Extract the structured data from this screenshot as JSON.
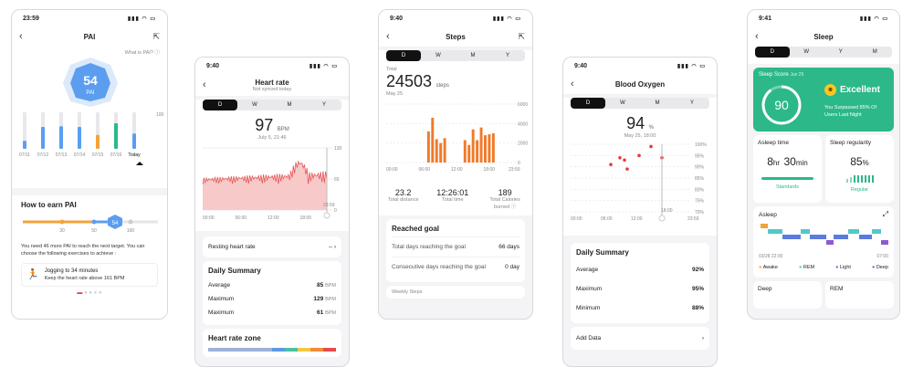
{
  "pai": {
    "time": "23:59",
    "status_icons": "▮▮▮ ◠ ▭",
    "title": "PAI",
    "what_link": "What is PAI? ⓘ",
    "score": "54",
    "score_label": "PAI",
    "chart_axis": [
      "100"
    ],
    "chart_data": {
      "type": "bar",
      "categories": [
        "07/11",
        "07/12",
        "07/13",
        "07/14",
        "07/15",
        "07/16",
        "Today"
      ],
      "values": [
        22,
        60,
        62,
        60,
        38,
        70,
        42
      ],
      "ylim": [
        0,
        100
      ]
    },
    "earn_title": "How to earn PAI",
    "slider_ticks": [
      "30",
      "50",
      "100"
    ],
    "slider_value": "54",
    "message": "You need 46 more PAI to reach the next target. You can choose the following exercises to achieve :",
    "exercise_title": "Jogging to 34 minutes",
    "exercise_desc": "Keep the heart rate above 161 BPM"
  },
  "heart": {
    "time": "9:40",
    "status_icons": "▮▮▮ ◠ ▭",
    "title": "Heart rate",
    "subtitle": "Not synced today",
    "tabs": [
      "D",
      "W",
      "M",
      "Y"
    ],
    "value": "97",
    "unit": "BPM",
    "date": "July 5, 21:46",
    "y_ticks": [
      "130",
      "65",
      "0"
    ],
    "x_ticks": [
      "00:00",
      "06:00",
      "12:00",
      "18:00",
      "23:59"
    ],
    "resting_label": "Resting heart rate",
    "resting_value": "-- ›",
    "summary_title": "Daily Summary",
    "summary": [
      {
        "label": "Average",
        "value": "85",
        "unit": "BPM"
      },
      {
        "label": "Maximum",
        "value": "129",
        "unit": "BPM"
      },
      {
        "label": "Maximum",
        "value": "61",
        "unit": "BPM"
      }
    ],
    "zone_title": "Heart rate zone"
  },
  "steps": {
    "time": "9:40",
    "status_icons": "▮▮▮ ◠ ▭",
    "title": "Steps",
    "tabs": [
      "D",
      "W",
      "M",
      "Y"
    ],
    "total_label": "Total",
    "total": "24503",
    "total_unit": "steps",
    "date": "May 25",
    "y_ticks": [
      "6000",
      "4000",
      "2000",
      "0"
    ],
    "x_ticks": [
      "00:00",
      "06:00",
      "12:00",
      "18:00",
      "23:59"
    ],
    "stats": [
      {
        "value": "23.2",
        "label": "Total distance"
      },
      {
        "value": "12:26:01",
        "label": "Total time"
      },
      {
        "value": "189",
        "label": "Total Calories burned ⓘ"
      }
    ],
    "goal_title": "Reached goal",
    "goal_rows": [
      {
        "label": "Total days reaching the goal",
        "value": "66 days"
      },
      {
        "label": "Consecutive days reaching the goal",
        "value": "0 day"
      }
    ],
    "weekly": "Weekly Steps"
  },
  "oxygen": {
    "time": "9:40",
    "status_icons": "▮▮▮ ◠ ▭",
    "title": "Blood Oxygen",
    "tabs": [
      "D",
      "W",
      "M",
      "Y"
    ],
    "value": "94",
    "unit": "%",
    "date": "May 25, 18:00",
    "y_ticks": [
      "100%",
      "95%",
      "90%",
      "85%",
      "80%",
      "75%",
      "70%"
    ],
    "x_ticks": [
      "00:00",
      "06:00",
      "12:00",
      "18:00",
      "23:59"
    ],
    "summary_title": "Daily Summary",
    "summary": [
      {
        "label": "Average",
        "value": "92%"
      },
      {
        "label": "Maximum",
        "value": "95%"
      },
      {
        "label": "Minimum",
        "value": "88%"
      }
    ],
    "add_data": "Add Data",
    "add_arrow": "›"
  },
  "sleep": {
    "time": "9:41",
    "status_icons": "▮▮▮ ◠ ▭",
    "title": "Sleep",
    "tabs": [
      "D",
      "W",
      "Y",
      "M"
    ],
    "score_title": "Sleep Score",
    "score_date": "Jun 25",
    "score": "90",
    "rating": "Excellent",
    "surpass": "You Surpassed 85% Of Users Last Night",
    "asleep_title": "Asleep time",
    "asleep_h": "8",
    "asleep_hr": "hr",
    "asleep_m": "30",
    "asleep_min": "min",
    "asleep_caption": "Standards",
    "reg_title": "Sleep regularity",
    "reg_value": "85",
    "reg_unit": "%",
    "reg_caption": "Regular",
    "chart_title": "Asleep",
    "chart_start": "03/28 22:00",
    "chart_end": "07:00",
    "legend": [
      "Awake",
      "REM",
      "Light",
      "Deep"
    ],
    "deep": "Deep",
    "rem": "REM"
  }
}
